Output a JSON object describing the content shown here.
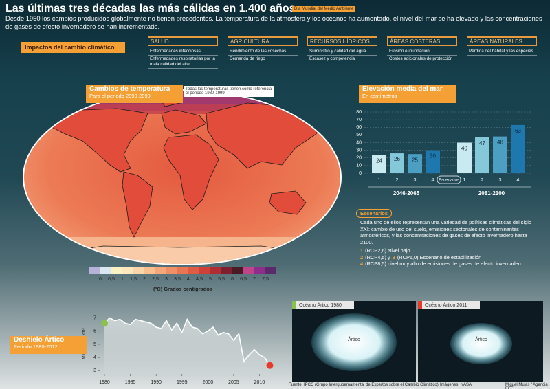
{
  "header": {
    "title": "Las últimas tres décadas las más cálidas en 1.400 años",
    "badge": "Día Mundial del Medio Ambiente",
    "intro": "Desde 1950 los cambios producidos globalmente no tienen precedentes. La temperatura de la atmósfera y los océanos ha aumentado, el nivel del mar se ha elevado y las concentraciones de gases de efecto invernadero se han incrementado."
  },
  "impacts": {
    "label": "Impactos del cambio climático",
    "columns": [
      {
        "title": "SALUD",
        "items": [
          "Enfermedades infecciosas",
          "Enfermedades respiratorias por la mala calidad del aire"
        ]
      },
      {
        "title": "AGRICULTURA",
        "items": [
          "Rendimiento de las cosechas",
          "Demanda de riego"
        ]
      },
      {
        "title": "RECURSOS HÍDRICOS",
        "items": [
          "Suministro y calidad del agua",
          "Escasez y competencia"
        ]
      },
      {
        "title": "ÁREAS COSTERAS",
        "items": [
          "Erosión e inundación",
          "Costes adicionales de protección"
        ]
      },
      {
        "title": "ÁREAS NATURALES",
        "items": [
          "Pérdida del hábitat y las especies"
        ]
      }
    ]
  },
  "chart_data": [
    {
      "type": "colorbar",
      "title": "Cambios de temperatura",
      "subtitle": "Para el periodo 2090-2099",
      "note": "Todas las temperaturas tienen como referencia el periodo 1980-1999",
      "xlabel": "(ºC) Grados centígrados",
      "xlim": [
        -0.5,
        8
      ],
      "xticks": [
        0,
        {
          "value": 0.5,
          "label": "0,5"
        },
        1,
        {
          "value": 1.5,
          "label": "1,5"
        },
        2,
        {
          "value": 2.5,
          "label": "2,5"
        },
        3,
        {
          "value": 3.5,
          "label": "3,5"
        },
        4,
        {
          "value": 4.5,
          "label": "4,5"
        },
        5,
        {
          "value": 5.5,
          "label": "5,5"
        },
        6,
        {
          "value": 6.5,
          "label": "6,5"
        },
        7,
        {
          "value": 7.5,
          "label": "7,5"
        }
      ],
      "colors": [
        "#b8b2d8",
        "#d9e7f1",
        "#f8f2c4",
        "#fde7bc",
        "#fbd5aa",
        "#f8bf90",
        "#f4a77a",
        "#ef8f66",
        "#e87652",
        "#df5c44",
        "#cf4039",
        "#b02d34",
        "#7d1f2f",
        "#4a1a24",
        "#c0448a",
        "#8d2f8a",
        "#5c2a6c"
      ]
    },
    {
      "type": "bar",
      "title": "Elevación media del mar",
      "subtitle": "En centímetros",
      "xlabel": "Escenarios",
      "categories": [
        "1",
        "2",
        "3",
        "4"
      ],
      "series": [
        {
          "name": "2046-2065",
          "values": [
            24,
            26,
            25,
            30
          ]
        },
        {
          "name": "2081-2100",
          "values": [
            40,
            47,
            48,
            63
          ]
        }
      ],
      "colors": [
        "#c9eaf1",
        "#84c8da",
        "#4c9fc2",
        "#1f78ad"
      ],
      "ylim": [
        0,
        80
      ],
      "yticks": [
        0,
        10,
        20,
        30,
        40,
        50,
        60,
        70,
        80
      ],
      "grid": true
    },
    {
      "type": "line",
      "title": "Deshielo Ártico",
      "subtitle": "Periodo 1980-2012",
      "ylabel": "Millones de km²",
      "x": [
        1980,
        1981,
        1982,
        1983,
        1984,
        1985,
        1986,
        1987,
        1988,
        1989,
        1990,
        1991,
        1992,
        1993,
        1994,
        1995,
        1996,
        1997,
        1998,
        1999,
        2000,
        2001,
        2002,
        2003,
        2004,
        2005,
        2006,
        2007,
        2008,
        2009,
        2010,
        2011,
        2012
      ],
      "values": [
        6.6,
        7.0,
        6.8,
        6.9,
        6.6,
        6.5,
        6.9,
        6.8,
        6.7,
        6.6,
        6.3,
        6.2,
        6.8,
        6.1,
        6.6,
        5.9,
        6.9,
        6.3,
        6.2,
        5.8,
        6.0,
        6.3,
        5.7,
        5.9,
        5.8,
        5.3,
        5.8,
        3.7,
        4.2,
        4.6,
        4.2,
        4.0,
        3.4
      ],
      "color": "#ffffff",
      "start_color": "#8cc152",
      "end_color": "#e53a2c",
      "xlim": [
        1978.8,
        2013
      ],
      "ylim": [
        2.6,
        7.4
      ],
      "xticks": [
        1980,
        1985,
        1990,
        1995,
        2000,
        2005,
        2010
      ],
      "yticks": [
        3,
        4,
        5,
        6,
        7
      ]
    }
  ],
  "scenarios": {
    "heading": "Escenarios",
    "text": "Cada uno de ellos representan una variedad de políticas climáticas del siglo XXI: cambio de uso del suelo, emisiones sectoriales de contaminantes atmosféricos, y las concentraciones de gases de efecto invernadero hasta 2100.",
    "items": [
      [
        "1",
        "(RCP2,6) Nivel bajo"
      ],
      [
        "2",
        "(RCP4,5) y",
        "3",
        "(RCP6,0) Escenario de estabilización"
      ],
      [
        "4",
        "(RCP8,5) nivel muy alto de emisiones de gases de efecto invernadero"
      ]
    ]
  },
  "arctic_images": [
    {
      "title": "Océano Ártico 1980",
      "label": "Ártico",
      "color": "#8cc152"
    },
    {
      "title": "Océano Ártico 2011",
      "label": "Ártico",
      "color": "#e53a2c"
    }
  ],
  "footer": {
    "source": "Fuente: IPCC (Grupo Intergubernamental de Expertos sobre el Cambio Climático)",
    "images": "Imágenes: NASA",
    "credit": "Miguel Mulas / Agencia EFE"
  }
}
